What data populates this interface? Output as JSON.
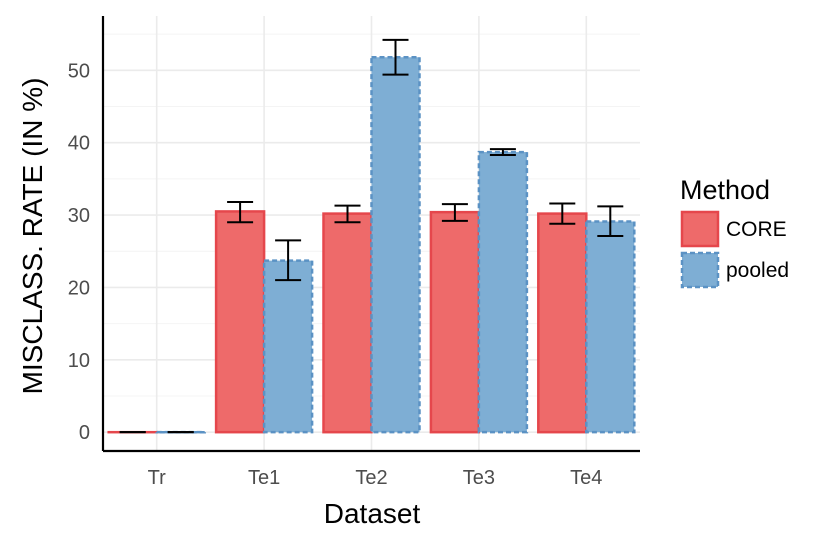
{
  "chart_data": {
    "type": "bar",
    "categories": [
      "Tr",
      "Te1",
      "Te2",
      "Te3",
      "Te4"
    ],
    "series": [
      {
        "name": "CORE",
        "values": [
          0.0,
          30.5,
          30.2,
          30.4,
          30.2
        ],
        "err_low": [
          0.0,
          29.0,
          29.0,
          29.2,
          28.8
        ],
        "err_high": [
          0.0,
          31.8,
          31.3,
          31.5,
          31.6
        ],
        "fill": "#ee6a6a",
        "stroke": "#e5474c",
        "dashed": false
      },
      {
        "name": "pooled",
        "values": [
          0.0,
          23.7,
          51.8,
          38.7,
          29.1
        ],
        "err_low": [
          0.0,
          21.0,
          49.4,
          38.3,
          27.1
        ],
        "err_high": [
          0.0,
          26.5,
          54.2,
          39.1,
          31.2
        ],
        "fill": "#7eaed4",
        "stroke": "#5b92c4",
        "dashed": true
      }
    ],
    "xlabel": "Dataset",
    "ylabel": "MISCLASS. RATE (IN %)",
    "ylim": [
      -2.6,
      57.5
    ],
    "yticks": [
      0,
      10,
      20,
      30,
      40,
      50
    ],
    "grid": true,
    "legend": {
      "title": "Method",
      "position": "right"
    }
  }
}
